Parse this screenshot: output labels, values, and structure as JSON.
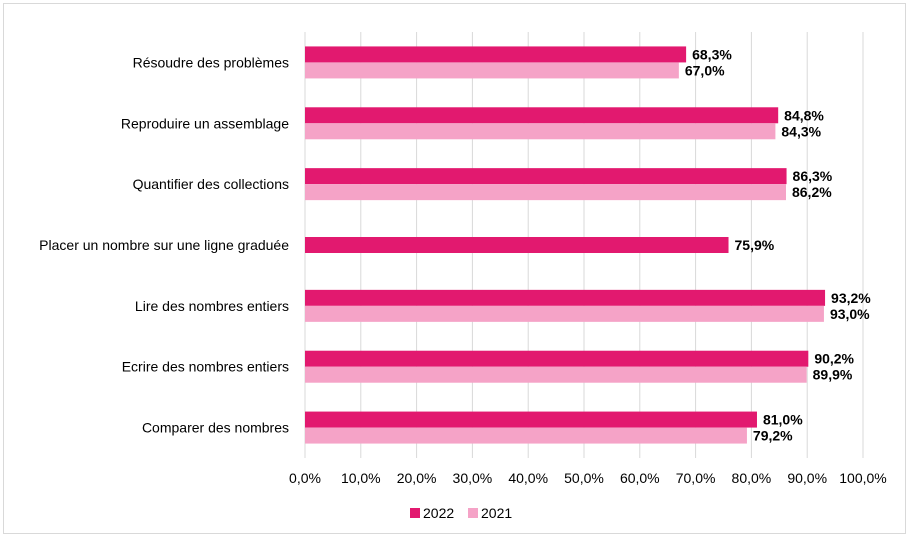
{
  "chart_data": {
    "type": "bar",
    "orientation": "horizontal",
    "categories": [
      "Résoudre des problèmes",
      "Reproduire un assemblage",
      "Quantifier des collections",
      "Placer un nombre sur une ligne graduée",
      "Lire des nombres entiers",
      "Ecrire des nombres entiers",
      "Comparer des nombres"
    ],
    "series": [
      {
        "name": "2022",
        "color": "#e2196f",
        "values": [
          68.3,
          84.8,
          86.3,
          75.9,
          93.2,
          90.2,
          81.0
        ],
        "labels": [
          "68,3%",
          "84,8%",
          "86,3%",
          "75,9%",
          "93,2%",
          "90,2%",
          "81,0%"
        ]
      },
      {
        "name": "2021",
        "color": "#f5a3c7",
        "values": [
          67.0,
          84.3,
          86.2,
          null,
          93.0,
          89.9,
          79.2
        ],
        "labels": [
          "67,0%",
          "84,3%",
          "86,2%",
          null,
          "93,0%",
          "89,9%",
          "79,2%"
        ]
      }
    ],
    "xlim": [
      0,
      100
    ],
    "xticks": [
      0,
      10,
      20,
      30,
      40,
      50,
      60,
      70,
      80,
      90,
      100
    ],
    "xtick_labels": [
      "0,0%",
      "10,0%",
      "20,0%",
      "30,0%",
      "40,0%",
      "50,0%",
      "60,0%",
      "70,0%",
      "80,0%",
      "90,0%",
      "100,0%"
    ],
    "grid": "vertical",
    "legend": "bottom-center",
    "title": "",
    "xlabel": "",
    "ylabel": ""
  }
}
